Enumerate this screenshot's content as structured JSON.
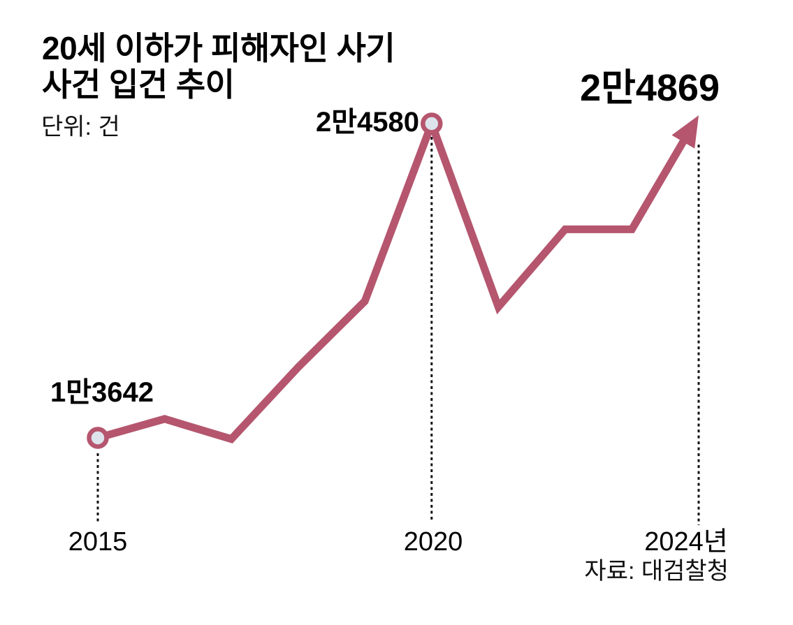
{
  "chart_data": {
    "type": "line",
    "title": "20세 이하가 피해자인 사기 사건 입건 추이",
    "title_lines": [
      "20세 이하가 피해자인 사기",
      "사건 입건 추이"
    ],
    "unit_label": "단위: 건",
    "source": "자료: 대검찰청",
    "x": [
      2015,
      2016,
      2017,
      2018,
      2019,
      2020,
      2021,
      2022,
      2023,
      2024
    ],
    "values": [
      13642,
      14300,
      13600,
      16100,
      18400,
      24580,
      18200,
      20900,
      20900,
      24869
    ],
    "labeled_values": {
      "2015": "1만3642",
      "2020": "2만4580",
      "2024": "2만4869"
    },
    "x_ticks": [
      {
        "x": 2015,
        "label": "2015"
      },
      {
        "x": 2020,
        "label": "2020"
      },
      {
        "x": 2024,
        "label": "2024년"
      }
    ],
    "marker_years": [
      2015,
      2020
    ],
    "guide_years": [
      2015,
      2020,
      2024
    ],
    "arrow_end_year": 2024,
    "line_color": "#b5566e",
    "marker_fill": "#dde4ec",
    "guide_color": "#111111",
    "text_color": "#000000",
    "background_color": "#ffffff",
    "grid": false,
    "legend": "none",
    "ylim": [
      13000,
      25500
    ]
  }
}
